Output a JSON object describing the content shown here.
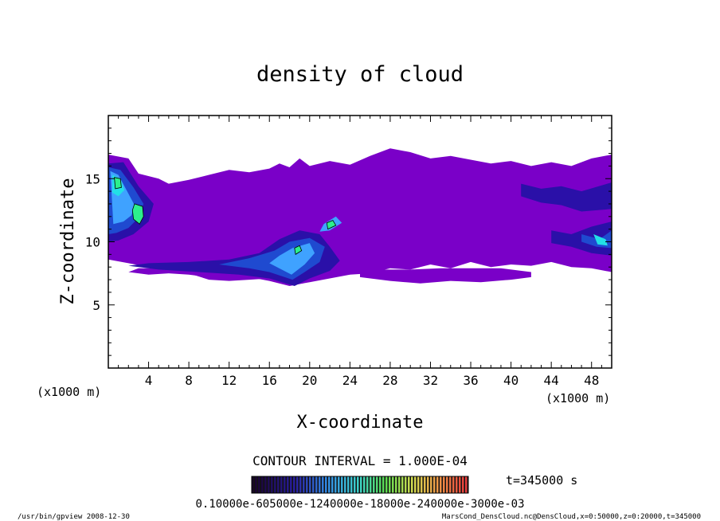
{
  "chart_data": {
    "type": "heatmap",
    "title": "density of cloud",
    "xlabel": "X-coordinate",
    "ylabel": "Z-coordinate",
    "x_unit": "(x1000 m)",
    "y_unit": "(x1000 m)",
    "xlim": [
      0,
      50
    ],
    "ylim": [
      0,
      20
    ],
    "x_ticks": [
      "4",
      "8",
      "12",
      "16",
      "20",
      "24",
      "28",
      "32",
      "36",
      "40",
      "44",
      "48"
    ],
    "y_ticks": [
      "5",
      "10",
      "15"
    ],
    "grid": false,
    "contour_interval": "CONTOUR INTERVAL = 1.000E-04",
    "time_label": "t=345000 s",
    "colorbar_labels": "0.10000e-605000e-1240000e-18000e-240000e-3000e-03",
    "footer_left": "/usr/bin/gpview  2008-12-30",
    "footer_right": "MarsCond_DensCloud.nc@DensCloud,x=0:50000,z=0:20000,t=345000",
    "level_colors": [
      "#7a00c8",
      "#2a10a8",
      "#1f4ad0",
      "#3fa2ff",
      "#22e0e6",
      "#2cf08c"
    ],
    "regions": [
      {
        "level": 0,
        "poly": [
          [
            0,
            16.9
          ],
          [
            2,
            16.6
          ],
          [
            3,
            15.4
          ],
          [
            5,
            15.0
          ],
          [
            6,
            14.6
          ],
          [
            8,
            14.9
          ],
          [
            10,
            15.3
          ],
          [
            12,
            15.7
          ],
          [
            14,
            15.5
          ],
          [
            16,
            15.8
          ],
          [
            17,
            16.2
          ],
          [
            18,
            15.9
          ],
          [
            19,
            16.6
          ],
          [
            20,
            16.0
          ],
          [
            22,
            16.4
          ],
          [
            24,
            16.1
          ],
          [
            26,
            16.8
          ],
          [
            28,
            17.4
          ],
          [
            30,
            17.1
          ],
          [
            32,
            16.6
          ],
          [
            34,
            16.8
          ],
          [
            36,
            16.5
          ],
          [
            38,
            16.2
          ],
          [
            40,
            16.4
          ],
          [
            42,
            16.0
          ],
          [
            44,
            16.3
          ],
          [
            46,
            16.0
          ],
          [
            48,
            16.6
          ],
          [
            50,
            16.9
          ],
          [
            50,
            7.6
          ],
          [
            48,
            7.9
          ],
          [
            46,
            8.0
          ],
          [
            44,
            8.4
          ],
          [
            42,
            8.1
          ],
          [
            40,
            8.2
          ],
          [
            38,
            8.0
          ],
          [
            36,
            8.4
          ],
          [
            34,
            7.9
          ],
          [
            32,
            8.2
          ],
          [
            30,
            7.8
          ],
          [
            28,
            7.9
          ],
          [
            26,
            7.5
          ],
          [
            24,
            7.4
          ],
          [
            22,
            7.6
          ],
          [
            20,
            7.3
          ],
          [
            18,
            6.8
          ],
          [
            16,
            7.1
          ],
          [
            14,
            7.0
          ],
          [
            12,
            6.9
          ],
          [
            10,
            7.0
          ],
          [
            8,
            7.5
          ],
          [
            6,
            7.6
          ],
          [
            4,
            8.0
          ],
          [
            2,
            8.3
          ],
          [
            0,
            8.6
          ]
        ]
      },
      {
        "level": 0,
        "poly": [
          [
            2,
            7.6
          ],
          [
            4,
            7.4
          ],
          [
            6,
            7.5
          ],
          [
            8,
            7.4
          ],
          [
            10,
            7.2
          ],
          [
            12,
            7.1
          ],
          [
            14,
            7.2
          ],
          [
            16,
            6.9
          ],
          [
            18,
            6.5
          ],
          [
            20,
            6.8
          ],
          [
            22,
            7.1
          ],
          [
            24,
            7.4
          ],
          [
            23,
            8.2
          ],
          [
            21,
            8.2
          ],
          [
            19,
            8.1
          ],
          [
            17,
            8.1
          ],
          [
            15,
            8.2
          ],
          [
            13,
            8.0
          ],
          [
            11,
            7.9
          ],
          [
            9,
            7.9
          ],
          [
            7,
            7.9
          ],
          [
            5,
            7.9
          ],
          [
            3,
            7.9
          ]
        ]
      },
      {
        "level": 0,
        "poly": [
          [
            25,
            7.2
          ],
          [
            28,
            6.9
          ],
          [
            31,
            6.7
          ],
          [
            34,
            6.9
          ],
          [
            37,
            6.8
          ],
          [
            40,
            7.0
          ],
          [
            42,
            7.2
          ],
          [
            42,
            7.6
          ],
          [
            39,
            7.9
          ],
          [
            36,
            7.9
          ],
          [
            33,
            7.9
          ],
          [
            30,
            7.8
          ],
          [
            27,
            7.8
          ],
          [
            25,
            7.7
          ]
        ]
      },
      {
        "level": 1,
        "poly": [
          [
            0,
            16.2
          ],
          [
            1.5,
            16.3
          ],
          [
            3,
            14.4
          ],
          [
            4.5,
            13.0
          ],
          [
            4,
            11.6
          ],
          [
            2.5,
            10.6
          ],
          [
            1,
            10.1
          ],
          [
            0,
            10.0
          ]
        ]
      },
      {
        "level": 1,
        "poly": [
          [
            2,
            8.1
          ],
          [
            5,
            7.8
          ],
          [
            9,
            7.6
          ],
          [
            13,
            7.4
          ],
          [
            16,
            7.1
          ],
          [
            18.5,
            6.5
          ],
          [
            20,
            7.1
          ],
          [
            22,
            7.7
          ],
          [
            23,
            8.5
          ],
          [
            22,
            9.6
          ],
          [
            21,
            10.6
          ],
          [
            19,
            10.9
          ],
          [
            17,
            10.2
          ],
          [
            15,
            9.1
          ],
          [
            12,
            8.6
          ],
          [
            8,
            8.4
          ],
          [
            4,
            8.3
          ]
        ]
      },
      {
        "level": 1,
        "poly": [
          [
            44,
            10.9
          ],
          [
            46,
            10.6
          ],
          [
            48,
            11.2
          ],
          [
            50,
            11.6
          ],
          [
            50,
            8.9
          ],
          [
            48,
            9.1
          ],
          [
            46,
            9.6
          ],
          [
            44,
            9.9
          ]
        ]
      },
      {
        "level": 1,
        "poly": [
          [
            41,
            14.6
          ],
          [
            43,
            14.2
          ],
          [
            45,
            14.4
          ],
          [
            47,
            14.0
          ],
          [
            50,
            14.7
          ],
          [
            50,
            12.6
          ],
          [
            47,
            12.4
          ],
          [
            45,
            12.9
          ],
          [
            43,
            13.1
          ],
          [
            41,
            13.6
          ]
        ]
      },
      {
        "level": 2,
        "poly": [
          [
            0,
            15.9
          ],
          [
            1.2,
            15.7
          ],
          [
            2.5,
            14.3
          ],
          [
            3.5,
            13.0
          ],
          [
            3,
            11.9
          ],
          [
            2,
            11.1
          ],
          [
            0.8,
            10.7
          ],
          [
            0,
            10.6
          ]
        ]
      },
      {
        "level": 2,
        "poly": [
          [
            11,
            8.2
          ],
          [
            14,
            7.9
          ],
          [
            16,
            7.6
          ],
          [
            18.3,
            7.0
          ],
          [
            19.5,
            7.6
          ],
          [
            21,
            8.4
          ],
          [
            21.5,
            9.6
          ],
          [
            20,
            10.3
          ],
          [
            18,
            10.0
          ],
          [
            16.5,
            9.3
          ],
          [
            14,
            8.7
          ]
        ]
      },
      {
        "level": 2,
        "poly": [
          [
            47,
            10.6
          ],
          [
            48.8,
            10.2
          ],
          [
            50,
            10.9
          ],
          [
            50,
            9.5
          ],
          [
            48.5,
            9.6
          ],
          [
            47,
            10.0
          ]
        ]
      },
      {
        "level": 3,
        "poly": [
          [
            0.2,
            15.6
          ],
          [
            1,
            15.3
          ],
          [
            1.8,
            14.1
          ],
          [
            2.6,
            12.9
          ],
          [
            2.3,
            12.1
          ],
          [
            1.5,
            11.6
          ],
          [
            0.5,
            11.4
          ]
        ]
      },
      {
        "level": 3,
        "poly": [
          [
            16,
            8.3
          ],
          [
            18.2,
            7.4
          ],
          [
            19.5,
            8.2
          ],
          [
            20.5,
            9.1
          ],
          [
            20,
            9.9
          ],
          [
            18.3,
            9.5
          ],
          [
            17,
            8.9
          ]
        ]
      },
      {
        "level": 3,
        "poly": [
          [
            21,
            10.8
          ],
          [
            22,
            10.9
          ],
          [
            23.2,
            11.5
          ],
          [
            22.6,
            12.0
          ],
          [
            21.4,
            11.4
          ]
        ]
      },
      {
        "level": 4,
        "poly": [
          [
            0.4,
            15.3
          ],
          [
            1.2,
            15.0
          ],
          [
            1.6,
            14.1
          ],
          [
            1.0,
            13.6
          ],
          [
            0.4,
            13.9
          ]
        ]
      },
      {
        "level": 4,
        "poly": [
          [
            48.2,
            10.6
          ],
          [
            49.4,
            10.2
          ],
          [
            49.6,
            9.7
          ],
          [
            48.6,
            9.8
          ]
        ]
      },
      {
        "level": 5,
        "poly": [
          [
            2.6,
            13.0
          ],
          [
            3.4,
            12.8
          ],
          [
            3.5,
            12.0
          ],
          [
            3.1,
            11.4
          ],
          [
            2.5,
            11.8
          ],
          [
            2.4,
            12.5
          ]
        ]
      },
      {
        "level": 5,
        "poly": [
          [
            0.6,
            15.1
          ],
          [
            1.2,
            15.0
          ],
          [
            1.3,
            14.3
          ],
          [
            0.7,
            14.2
          ]
        ]
      },
      {
        "level": 5,
        "poly": [
          [
            21.8,
            11.0
          ],
          [
            22.6,
            11.3
          ],
          [
            22.3,
            11.7
          ],
          [
            21.7,
            11.5
          ]
        ]
      },
      {
        "level": 5,
        "poly": [
          [
            18.6,
            9.0
          ],
          [
            19.2,
            9.3
          ],
          [
            19.0,
            9.7
          ],
          [
            18.5,
            9.5
          ]
        ]
      }
    ]
  }
}
